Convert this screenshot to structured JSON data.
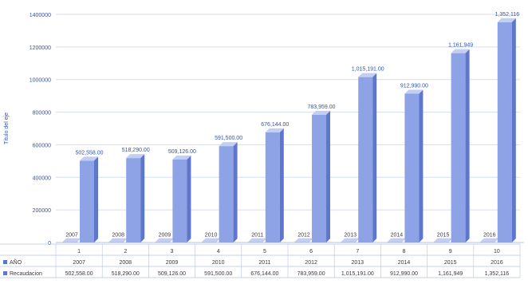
{
  "colors": {
    "bar_front": "#8ea2e6",
    "bar_side": "#5e76cc",
    "bar_top": "#c3cef3",
    "axis_text": "#2f55b5",
    "grid": "#d7ddef",
    "table_line": "#b9c3e4",
    "row_text": "#3a3a3a"
  },
  "chart_data": {
    "type": "bar",
    "title": "",
    "xlabel": "",
    "ylabel": "Título del eje",
    "ylim": [
      0,
      1400000
    ],
    "yticks": [
      0,
      200000,
      400000,
      600000,
      800000,
      1000000,
      1200000,
      1400000
    ],
    "ytick_labels": [
      "0",
      "200000",
      "400000",
      "600000",
      "800000",
      "1000000",
      "1200000",
      "1400000"
    ],
    "categories": [
      "1",
      "2",
      "3",
      "4",
      "5",
      "6",
      "7",
      "8",
      "9",
      "10"
    ],
    "series": [
      {
        "name": "AÑO",
        "values": [
          2007,
          2008,
          2009,
          2010,
          2011,
          2012,
          2013,
          2014,
          2015,
          2016
        ],
        "labels": [
          "2007",
          "2008",
          "2009",
          "2010",
          "2011",
          "2012",
          "2013",
          "2014",
          "2015",
          "2016"
        ]
      },
      {
        "name": "Recaudacion",
        "values": [
          502558,
          518290,
          509126,
          591500,
          676144,
          783959,
          1015191,
          912990,
          1161949,
          1352116
        ],
        "labels": [
          "502,558.00",
          "518,290.00",
          "509,126.00",
          "591,500.00",
          "676,144.00",
          "783,959.00",
          "1,015,191.00",
          "912,990.00",
          "1,161,949",
          "1,352,116"
        ]
      }
    ],
    "legend": "table-below",
    "grid": true
  }
}
